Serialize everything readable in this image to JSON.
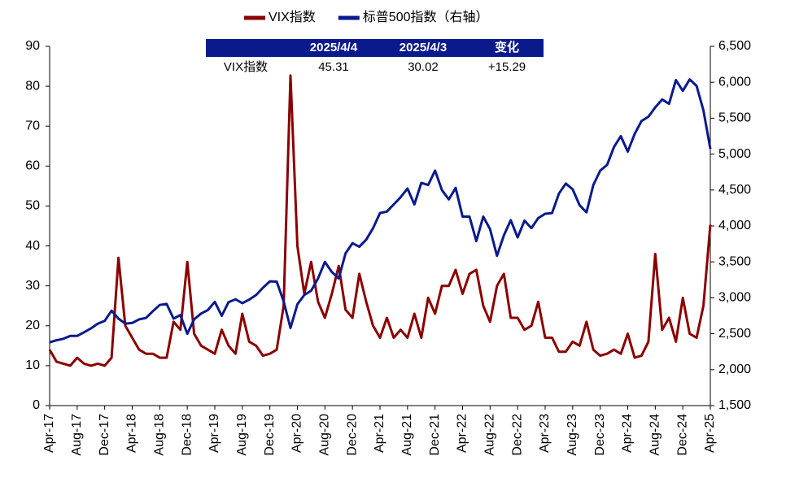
{
  "chart_data": {
    "type": "line",
    "legend": "top",
    "categories": [
      "Apr-17",
      null,
      null,
      null,
      "Aug-17",
      null,
      null,
      null,
      "Dec-17",
      null,
      null,
      null,
      "Apr-18",
      null,
      null,
      null,
      "Aug-18",
      null,
      null,
      null,
      "Dec-18",
      null,
      null,
      null,
      "Apr-19",
      null,
      null,
      null,
      "Aug-19",
      null,
      null,
      null,
      "Dec-19",
      null,
      null,
      null,
      "Apr-20",
      null,
      null,
      null,
      "Aug-20",
      null,
      null,
      null,
      "Dec-20",
      null,
      null,
      null,
      "Apr-21",
      null,
      null,
      null,
      "Aug-21",
      null,
      null,
      null,
      "Dec-21",
      null,
      null,
      null,
      "Apr-22",
      null,
      null,
      null,
      "Aug-22",
      null,
      null,
      null,
      "Dec-22",
      null,
      null,
      null,
      "Apr-23",
      null,
      null,
      null,
      "Aug-23",
      null,
      null,
      null,
      "Dec-23",
      null,
      null,
      null,
      "Apr-24",
      null,
      null,
      null,
      "Aug-24",
      null,
      null,
      null,
      "Dec-24",
      null,
      null,
      null,
      "Apr-25"
    ],
    "series": [
      {
        "name": "VIX指数",
        "color": "#8b0000",
        "values": [
          14,
          11,
          10.5,
          10,
          12,
          10.5,
          10,
          10.5,
          10,
          12,
          37,
          20,
          17,
          14,
          13,
          13,
          12,
          12,
          21,
          19,
          36,
          18,
          15,
          14,
          13,
          19,
          15,
          13,
          23,
          16,
          15,
          12.5,
          13,
          14,
          25,
          82.7,
          40,
          28,
          36,
          26,
          22,
          28,
          35,
          24,
          22,
          33,
          26,
          20,
          17,
          22,
          17,
          19,
          17,
          23,
          17,
          27,
          23,
          30,
          30,
          34,
          28,
          33,
          34,
          25,
          21,
          30,
          33,
          22,
          22,
          19,
          20,
          26,
          17,
          17,
          13.5,
          13.5,
          16,
          15,
          21,
          14,
          12.5,
          13,
          14,
          13,
          18,
          12,
          12.5,
          16,
          38,
          19,
          22,
          16,
          27,
          18,
          17,
          25,
          45.31
        ]
      },
      {
        "name": "标普500指数（右轴）",
        "color": "#0a1a8c",
        "axis": "y2",
        "values": [
          2380,
          2410,
          2430,
          2470,
          2470,
          2520,
          2575,
          2640,
          2680,
          2820,
          2710,
          2640,
          2650,
          2700,
          2720,
          2815,
          2900,
          2915,
          2710,
          2760,
          2500,
          2700,
          2780,
          2830,
          2945,
          2750,
          2940,
          2980,
          2925,
          2975,
          3040,
          3140,
          3230,
          3225,
          2950,
          2580,
          2910,
          3040,
          3100,
          3270,
          3500,
          3360,
          3270,
          3620,
          3760,
          3710,
          3810,
          3970,
          4180,
          4200,
          4300,
          4400,
          4520,
          4300,
          4600,
          4570,
          4770,
          4500,
          4370,
          4530,
          4130,
          4130,
          3790,
          4130,
          3955,
          3585,
          3870,
          4080,
          3840,
          4075,
          3970,
          4110,
          4170,
          4180,
          4450,
          4590,
          4510,
          4290,
          4190,
          4570,
          4770,
          4850,
          5100,
          5250,
          5035,
          5280,
          5460,
          5520,
          5650,
          5760,
          5700,
          6030,
          5880,
          6040,
          5950,
          5610,
          5074
        ]
      }
    ],
    "ylim": [
      0,
      90
    ],
    "yticks": [
      0,
      10,
      20,
      30,
      40,
      50,
      60,
      70,
      80,
      90
    ],
    "y2lim": [
      1500,
      6500
    ],
    "y2ticks": [
      {
        "value": 1500,
        "label": "1,500"
      },
      {
        "value": 2000,
        "label": "2,000"
      },
      {
        "value": 2500,
        "label": "2,500"
      },
      {
        "value": 3000,
        "label": "3,000"
      },
      {
        "value": 3500,
        "label": "3,500"
      },
      {
        "value": 4000,
        "label": "4,000"
      },
      {
        "value": 4500,
        "label": "4,500"
      },
      {
        "value": 5000,
        "label": "5,000"
      },
      {
        "value": 5500,
        "label": "5,500"
      },
      {
        "value": 6000,
        "label": "6,000"
      },
      {
        "value": 6500,
        "label": "6,500"
      }
    ],
    "table": {
      "header": [
        "2025/4/4",
        "2025/4/3",
        "变化"
      ],
      "rows": [
        [
          "VIX指数",
          "45.31",
          "30.02",
          "+15.29"
        ]
      ]
    }
  }
}
